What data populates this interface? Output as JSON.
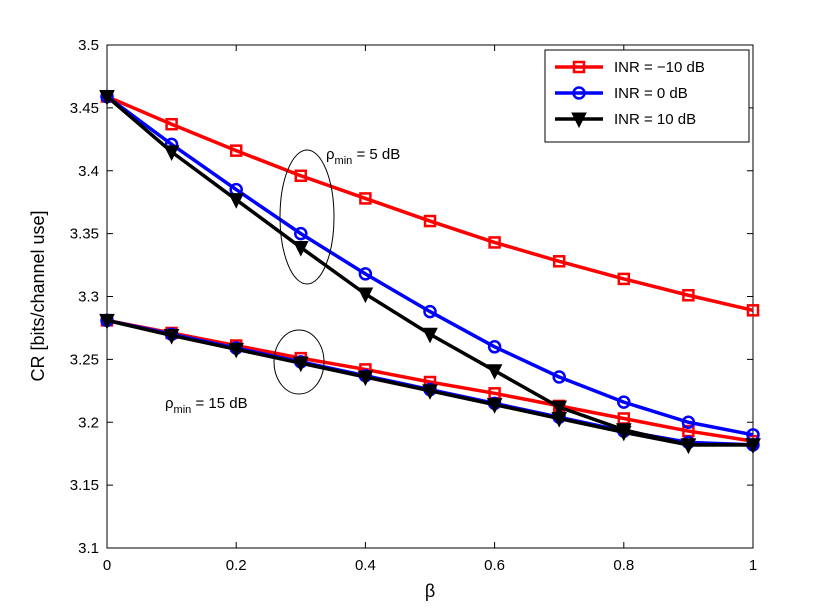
{
  "chart_data": {
    "type": "line",
    "title": "",
    "xlabel": "β",
    "ylabel": "CR [bits/channel use]",
    "xlim": [
      0,
      1
    ],
    "ylim": [
      3.1,
      3.5
    ],
    "xticks": [
      0,
      0.2,
      0.4,
      0.6,
      0.8,
      1
    ],
    "xtick_labels": [
      "0",
      "0.2",
      "0.4",
      "0.6",
      "0.8",
      "1"
    ],
    "yticks": [
      3.1,
      3.15,
      3.2,
      3.25,
      3.3,
      3.35,
      3.4,
      3.45,
      3.5
    ],
    "ytick_labels": [
      "3.1",
      "3.15",
      "3.2",
      "3.25",
      "3.3",
      "3.35",
      "3.4",
      "3.45",
      "3.5"
    ],
    "grid": false,
    "legend_position": "top-right",
    "x": [
      0,
      0.1,
      0.2,
      0.3,
      0.4,
      0.5,
      0.6,
      0.7,
      0.8,
      0.9,
      1.0
    ],
    "series": [
      {
        "name": "INR = −10 dB",
        "color": "#ff0000",
        "marker": "square",
        "groups": {
          "rho5": [
            3.459,
            3.437,
            3.416,
            3.396,
            3.378,
            3.36,
            3.343,
            3.328,
            3.314,
            3.301,
            3.289
          ],
          "rho15": [
            3.281,
            3.271,
            3.261,
            3.251,
            3.242,
            3.232,
            3.223,
            3.213,
            3.203,
            3.193,
            3.185
          ]
        }
      },
      {
        "name": "INR = 0 dB",
        "color": "#0000ff",
        "marker": "circle",
        "groups": {
          "rho5": [
            3.459,
            3.421,
            3.385,
            3.35,
            3.318,
            3.288,
            3.26,
            3.236,
            3.216,
            3.2,
            3.19
          ],
          "rho15": [
            3.281,
            3.27,
            3.259,
            3.248,
            3.237,
            3.226,
            3.215,
            3.204,
            3.193,
            3.184,
            3.182
          ]
        }
      },
      {
        "name": "INR = 10 dB",
        "color": "#000000",
        "marker": "triangle-down",
        "groups": {
          "rho5": [
            3.459,
            3.415,
            3.377,
            3.339,
            3.302,
            3.27,
            3.241,
            3.212,
            3.194,
            3.182,
            3.182
          ],
          "rho15": [
            3.281,
            3.269,
            3.258,
            3.247,
            3.236,
            3.225,
            3.214,
            3.203,
            3.192,
            3.182,
            3.182
          ]
        }
      }
    ],
    "annotations": [
      {
        "name": "rho5",
        "symbol": "ρ",
        "sub": "min",
        "suffix": " = 5 dB"
      },
      {
        "name": "rho15",
        "symbol": "ρ",
        "sub": "min",
        "suffix": " = 15 dB"
      }
    ]
  }
}
